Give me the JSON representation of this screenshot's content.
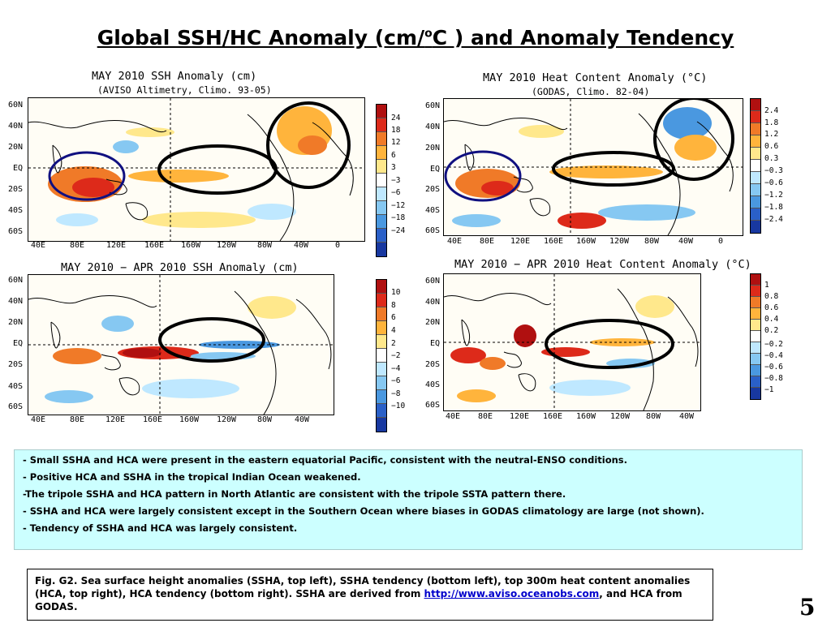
{
  "title": {
    "main": "Global SSH/HC Anomaly (cm/",
    "sup": "o",
    "rest": "C ) and Anomaly Tendency"
  },
  "panels": [
    {
      "id": "ssh-anomaly",
      "title": "MAY 2010 SSH Anomaly (cm)",
      "subtitle": "(AVISO Altimetry, Climo. 93-05)",
      "lat_labels": [
        "60N",
        "40N",
        "20N",
        "EQ",
        "20S",
        "40S",
        "60S"
      ],
      "lon_labels": [
        "40E",
        "80E",
        "120E",
        "160E",
        "160W",
        "120W",
        "80W",
        "40W",
        "0"
      ],
      "colorbar_ticks": [
        "24",
        "18",
        "12",
        "6",
        "3",
        "−3",
        "−6",
        "−12",
        "−18",
        "−24"
      ]
    },
    {
      "id": "hc-anomaly",
      "title": "MAY 2010 Heat Content Anomaly (°C)",
      "subtitle": "(GODAS, Climo. 82-04)",
      "lat_labels": [
        "60N",
        "40N",
        "20N",
        "EQ",
        "20S",
        "40S",
        "60S"
      ],
      "lon_labels": [
        "40E",
        "80E",
        "120E",
        "160E",
        "160W",
        "120W",
        "80W",
        "40W",
        "0"
      ],
      "colorbar_ticks": [
        "2.4",
        "1.8",
        "1.2",
        "0.6",
        "0.3",
        "−0.3",
        "−0.6",
        "−1.2",
        "−1.8",
        "−2.4"
      ]
    },
    {
      "id": "ssh-tendency",
      "title": "MAY 2010 − APR 2010 SSH Anomaly (cm)",
      "subtitle": "",
      "lat_labels": [
        "60N",
        "40N",
        "20N",
        "EQ",
        "20S",
        "40S",
        "60S"
      ],
      "lon_labels": [
        "40E",
        "80E",
        "120E",
        "160E",
        "160W",
        "120W",
        "80W",
        "40W"
      ],
      "colorbar_ticks": [
        "10",
        "8",
        "6",
        "4",
        "2",
        "−2",
        "−4",
        "−6",
        "−8",
        "−10"
      ]
    },
    {
      "id": "hc-tendency",
      "title": "MAY 2010 − APR 2010 Heat Content Anomaly (°C)",
      "subtitle": "",
      "lat_labels": [
        "60N",
        "40N",
        "20N",
        "EQ",
        "20S",
        "40S",
        "60S"
      ],
      "lon_labels": [
        "40E",
        "80E",
        "120E",
        "160E",
        "160W",
        "120W",
        "80W",
        "40W"
      ],
      "colorbar_ticks": [
        "1",
        "0.8",
        "0.6",
        "0.4",
        "0.2",
        "−0.2",
        "−0.4",
        "−0.6",
        "−0.8",
        "−1"
      ]
    }
  ],
  "colorbar_colors": [
    "#b01010",
    "#dd2a1a",
    "#f07a28",
    "#ffb43c",
    "#ffe88c",
    "#ffffff",
    "#bfe8ff",
    "#86c8f2",
    "#4a98e0",
    "#2a60c8",
    "#1838a0"
  ],
  "notes": [
    "- Small SSHA and HCA were present in the eastern equatorial Pacific, consistent with the neutral-ENSO conditions.",
    "- Positive HCA and SSHA in the tropical Indian Ocean weakened.",
    "-The tripole SSHA and HCA pattern in North Atlantic are consistent with the tripole SSTA pattern there.",
    "- SSHA and HCA were largely consistent  except in the Southern Ocean where biases in GODAS climatology are large (not shown).",
    "- Tendency of SSHA and HCA was largely consistent."
  ],
  "caption": {
    "text": "Fig. G2. Sea surface height anomalies (SSHA, top left), SSHA tendency (bottom left), top 300m heat content anomalies (HCA, top right), HCA tendency (bottom right).  SSHA are derived from ",
    "link": "http://www.aviso.oceanobs.com",
    "tail": ", and HCA from GODAS."
  },
  "page_number": "5"
}
